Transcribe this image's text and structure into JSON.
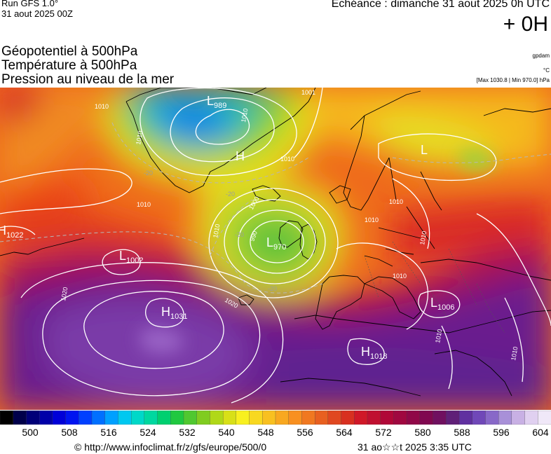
{
  "header": {
    "run": "Run GFS 1.0°",
    "run_date": "31 aout 2025 00Z",
    "echeance": "Echéance : dimanche 31 aout 2025 0h UTC",
    "lead": "+ 0H"
  },
  "params": {
    "line1": "Géopotentiel à 500hPa",
    "line2": "Température à 500hPa",
    "line3": "Pression au niveau de la mer"
  },
  "units": {
    "u1": "gpdam",
    "u2": "°C",
    "u3": "[Max 1030.8 | Min 970.0] hPa"
  },
  "map": {
    "pressure_centers": [
      {
        "type": "L",
        "value": "989"
      },
      {
        "type": "L",
        "value": "970"
      },
      {
        "type": "L",
        "value": "1002"
      },
      {
        "type": "L",
        "value": "1006"
      },
      {
        "type": "L",
        "value": ""
      },
      {
        "type": "H",
        "value": "1031"
      },
      {
        "type": "H",
        "value": "1018"
      },
      {
        "type": "H",
        "value": "1022"
      },
      {
        "type": "H",
        "value": ""
      }
    ],
    "isobar_labels": [
      "1001",
      "1010",
      "1010",
      "1010",
      "1010",
      "1010",
      "1000",
      "990",
      "1010",
      "1020",
      "1020",
      "1010",
      "1010",
      "1010",
      "1010",
      "1010",
      "1010"
    ],
    "isotherm_labels": [
      "-20",
      "-20",
      "-20",
      "-20"
    ]
  },
  "colorbar": {
    "ticks": [
      "500",
      "508",
      "516",
      "524",
      "532",
      "540",
      "548",
      "556",
      "564",
      "572",
      "580",
      "588",
      "596",
      "604"
    ]
  },
  "footer": {
    "url": "© http://www.infoclimat.fr/z/gfs/europe/500/0",
    "date": "31 ao☆☆t 2025  3:35 UTC"
  },
  "colors": {
    "background": "#ffffff",
    "isobar": "#ffffff",
    "coastline": "#000000"
  }
}
